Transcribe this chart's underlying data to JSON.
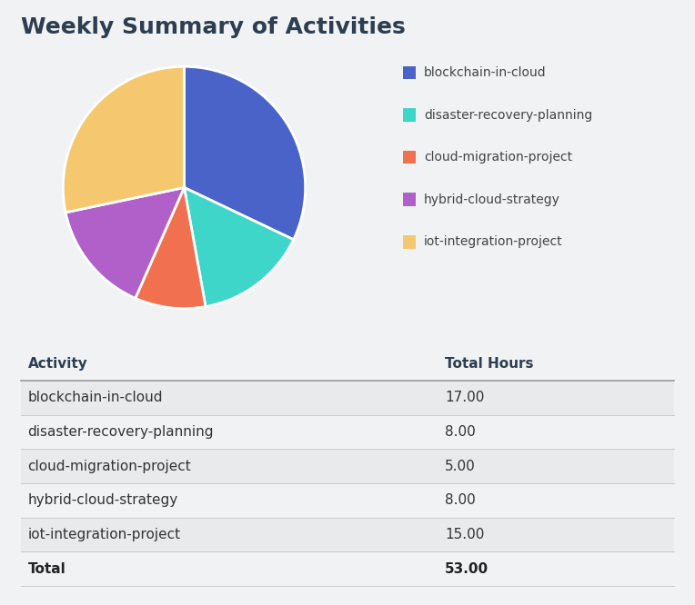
{
  "title": "Weekly Summary of Activities",
  "activities": [
    "blockchain-in-cloud",
    "disaster-recovery-planning",
    "cloud-migration-project",
    "hybrid-cloud-strategy",
    "iot-integration-project"
  ],
  "hours": [
    17.0,
    8.0,
    5.0,
    8.0,
    15.0
  ],
  "total": 53.0,
  "colors": [
    "#4a63c8",
    "#3dd6c8",
    "#f07050",
    "#b060c8",
    "#f5c870"
  ],
  "background_color": "#f0f2f4",
  "title_color": "#2c3e50",
  "table_header_color": "#2c3e50",
  "table_row_alt_color": "#e8eaec",
  "table_row_color": "#f0f2f4",
  "legend_labels": [
    "blockchain-in-cloud",
    "disaster-recovery-planning",
    "cloud-migration-project",
    "hybrid-cloud-strategy",
    "iot-integration-project"
  ],
  "col_headers": [
    "Activity",
    "Total Hours"
  ],
  "title_fontsize": 18,
  "table_fontsize": 11,
  "legend_fontsize": 10
}
